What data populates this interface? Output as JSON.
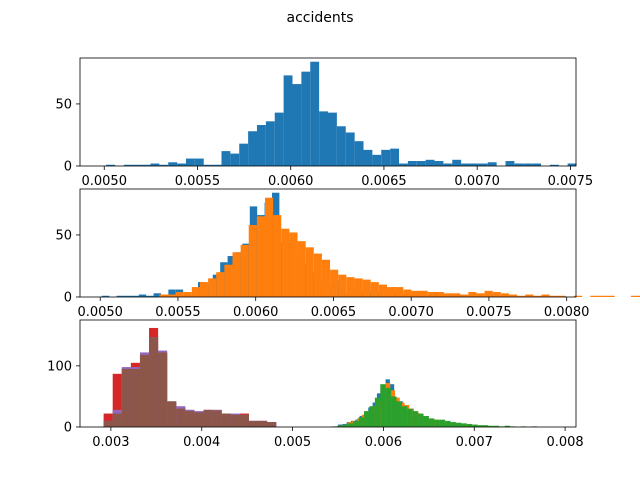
{
  "figure": {
    "title": "accidents"
  },
  "chart_data": [
    {
      "type": "bar",
      "xlim": [
        0.00487,
        0.00753
      ],
      "ylim": [
        0,
        87
      ],
      "xticks": [
        0.005,
        0.0055,
        0.006,
        0.0065,
        0.007,
        0.0075
      ],
      "xtick_labels": [
        "0.0050",
        "0.0055",
        "0.0060",
        "0.0065",
        "0.0070",
        "0.0075"
      ],
      "yticks": [
        0,
        50
      ],
      "ytick_labels": [
        "0",
        "50"
      ],
      "series": [
        {
          "color": "#1f77b4",
          "bin_start": 0.00501,
          "bin_width": 4.76e-05,
          "counts": [
            1,
            0,
            1,
            1,
            1,
            2,
            1,
            3,
            2,
            6,
            6,
            1,
            1,
            12,
            10,
            18,
            28,
            33,
            36,
            43,
            73,
            66,
            76,
            84,
            44,
            43,
            32,
            27,
            20,
            13,
            9,
            13,
            14,
            2,
            4,
            4,
            5,
            4,
            2,
            5,
            2,
            2,
            2,
            3,
            0,
            4,
            2,
            2,
            2,
            0,
            1,
            0,
            2
          ]
        }
      ]
    },
    {
      "type": "bar",
      "xlim": [
        0.00487,
        0.00806
      ],
      "ylim": [
        0,
        87
      ],
      "xticks": [
        0.005,
        0.0055,
        0.006,
        0.0065,
        0.007,
        0.0075,
        0.008
      ],
      "xtick_labels": [
        "0.0050",
        "0.0055",
        "0.0060",
        "0.0065",
        "0.0070",
        "0.0075",
        "0.0080"
      ],
      "yticks": [
        0,
        50
      ],
      "ytick_labels": [
        "0",
        "50"
      ],
      "series": [
        {
          "color": "#1f77b4",
          "bin_start": 0.00501,
          "bin_width": 4.76e-05,
          "counts": [
            1,
            0,
            1,
            1,
            1,
            2,
            1,
            3,
            2,
            6,
            6,
            1,
            1,
            12,
            10,
            18,
            28,
            33,
            36,
            43,
            73,
            66,
            76,
            84,
            44,
            43,
            32,
            27,
            20,
            13,
            9,
            13,
            14,
            2,
            4,
            4,
            5,
            4,
            2,
            5,
            2,
            2,
            2,
            3,
            0,
            4,
            2,
            2,
            2,
            0,
            1,
            0,
            2
          ]
        },
        {
          "color": "#ff7f0e",
          "bin_start": 0.00538,
          "bin_width": 5.23e-05,
          "counts": [
            2,
            2,
            4,
            4,
            8,
            12,
            15,
            20,
            26,
            36,
            42,
            58,
            65,
            80,
            66,
            55,
            52,
            45,
            40,
            35,
            30,
            22,
            18,
            16,
            15,
            14,
            12,
            10,
            8,
            8,
            6,
            5,
            5,
            4,
            4,
            3,
            3,
            2,
            4,
            3,
            5,
            4,
            3,
            2,
            1,
            2,
            1,
            2,
            1,
            1,
            0,
            1,
            0,
            1,
            1,
            1,
            0,
            0,
            1,
            1
          ]
        }
      ]
    },
    {
      "type": "bar",
      "xlim": [
        0.00266,
        0.00812
      ],
      "ylim": [
        0,
        175
      ],
      "xticks": [
        0.003,
        0.004,
        0.005,
        0.006,
        0.007,
        0.008
      ],
      "xtick_labels": [
        "0.003",
        "0.004",
        "0.005",
        "0.006",
        "0.007",
        "0.008"
      ],
      "yticks": [
        0,
        100
      ],
      "ytick_labels": [
        "0",
        "100"
      ],
      "series": [
        {
          "color": "#d62728",
          "bin_start": 0.00292,
          "bin_width": 0.0001,
          "counts": [
            22,
            87,
            95,
            105,
            80,
            162,
            120,
            40,
            30,
            28,
            20,
            28,
            28,
            22,
            20,
            22,
            10,
            10,
            8
          ]
        },
        {
          "color": "#9467bd",
          "bin_start": 0.00292,
          "bin_width": 0.0001,
          "counts": [
            10,
            28,
            98,
            98,
            122,
            147,
            125,
            42,
            34,
            28,
            26,
            28,
            28,
            22,
            22,
            20,
            10,
            10,
            8
          ]
        },
        {
          "color": "#8c564b",
          "bin_start": 0.00292,
          "bin_width": 0.0001,
          "counts": [
            10,
            22,
            95,
            95,
            118,
            147,
            122,
            42,
            30,
            26,
            24,
            28,
            27,
            22,
            20,
            20,
            10,
            10,
            8
          ]
        },
        {
          "color": "#1f77b4",
          "bin_start": 0.0055,
          "bin_width": 4.76e-05,
          "counts": [
            4,
            5,
            8,
            10,
            12,
            18,
            24,
            32,
            40,
            55,
            62,
            78,
            70,
            48,
            42,
            32,
            24,
            18,
            14,
            10,
            8,
            6,
            4,
            3,
            2,
            2
          ]
        },
        {
          "color": "#ff7f0e",
          "bin_start": 0.0055,
          "bin_width": 5.23e-05,
          "counts": [
            2,
            4,
            8,
            10,
            14,
            20,
            26,
            34,
            42,
            58,
            72,
            60,
            48,
            40,
            36,
            30,
            24,
            20,
            16,
            14,
            12,
            10,
            8,
            6,
            5,
            4,
            3,
            3,
            2,
            2,
            1,
            1,
            1
          ]
        },
        {
          "color": "#2ca02c",
          "bin_start": 0.00543,
          "bin_width": 5.95e-05,
          "counts": [
            1,
            2,
            4,
            6,
            10,
            16,
            26,
            34,
            48,
            70,
            64,
            50,
            42,
            34,
            30,
            26,
            22,
            18,
            14,
            12,
            12,
            10,
            8,
            7,
            6,
            5,
            4,
            3,
            3,
            2,
            2,
            1,
            2,
            1,
            0,
            1,
            0,
            1
          ]
        }
      ]
    }
  ]
}
